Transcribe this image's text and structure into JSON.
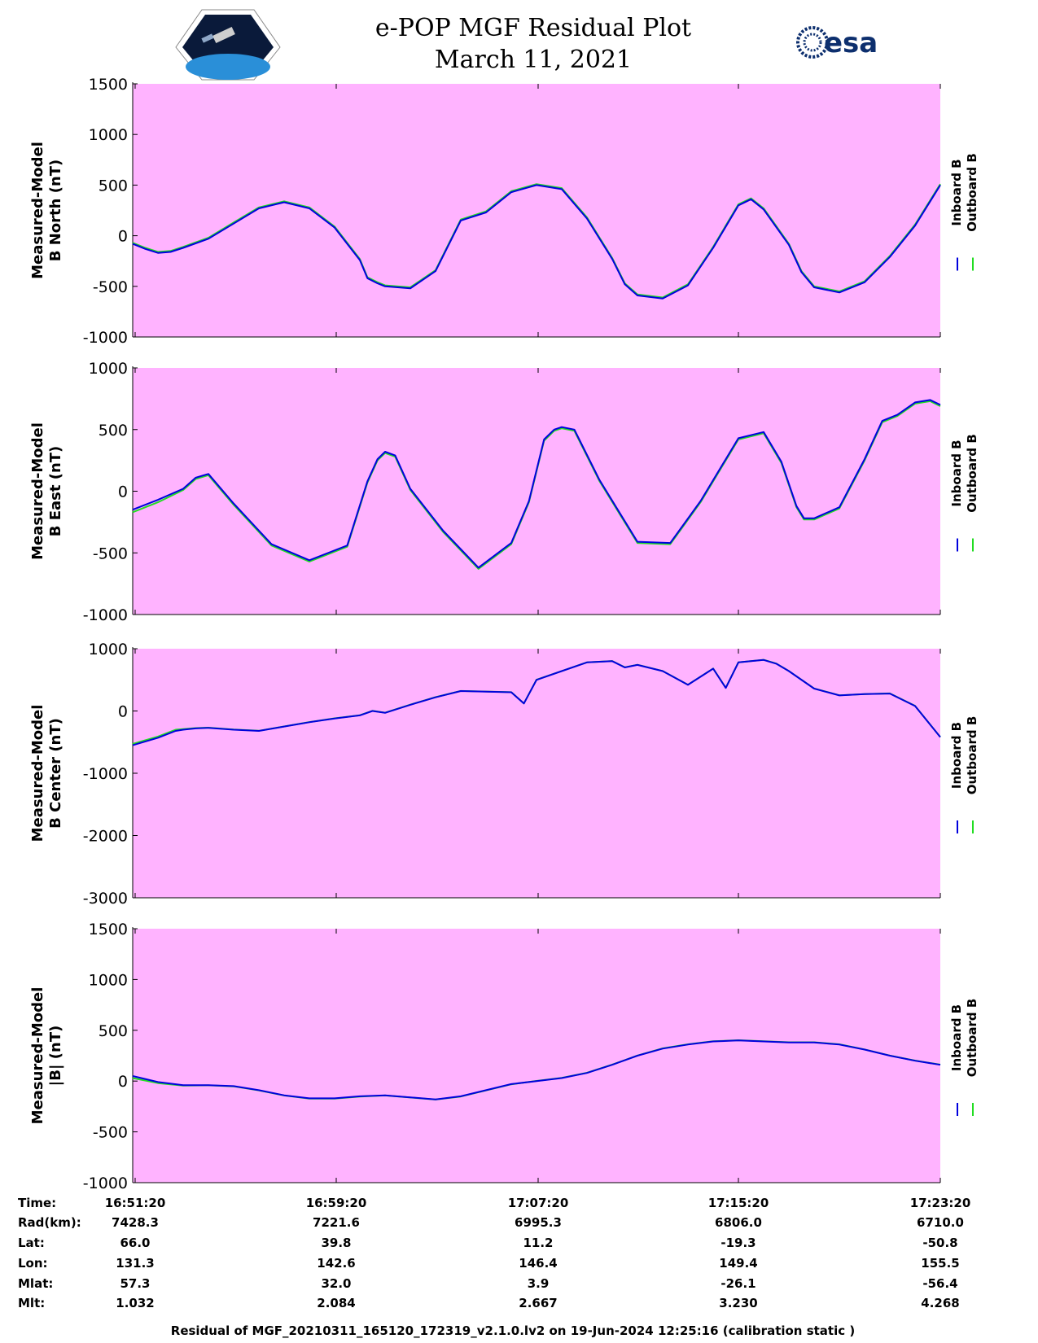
{
  "header": {
    "title_line1": "e-POP MGF Residual Plot",
    "title_line2": "March 11, 2021",
    "logo_left": "Cassiope e-POP mission logo",
    "logo_right_text": "esa"
  },
  "colors": {
    "plot_background": "#ffb3ff",
    "inboard": "#0000dd",
    "outboard": "#22dd22"
  },
  "legend": {
    "inboard": "Inboard B",
    "outboard": "Outboard B"
  },
  "chart_data": [
    {
      "type": "line",
      "ylabel": [
        "Measured-Model",
        "B North (nT)"
      ],
      "ylim": [
        -1000,
        1500
      ],
      "yticks": [
        1500,
        1000,
        500,
        0,
        -500,
        -1000
      ],
      "xlim_minutes": [
        0,
        32
      ],
      "series": [
        {
          "name": "Inboard B",
          "color": "#0000dd",
          "x_min": [
            0,
            0.5,
            1,
            1.5,
            2,
            3,
            4,
            5,
            6,
            7,
            8,
            9,
            9.3,
            9.7,
            10,
            11,
            12,
            13,
            14,
            15,
            16,
            17,
            18,
            19,
            19.5,
            20,
            21,
            22,
            23,
            24,
            24.5,
            25,
            26,
            26.5,
            27,
            28,
            29,
            30,
            31,
            32
          ],
          "y": [
            -80,
            -130,
            -170,
            -160,
            -120,
            -30,
            120,
            270,
            330,
            270,
            80,
            -240,
            -420,
            -470,
            -500,
            -520,
            -350,
            150,
            230,
            430,
            500,
            460,
            170,
            -230,
            -480,
            -590,
            -620,
            -490,
            -120,
            300,
            360,
            260,
            -90,
            -360,
            -510,
            -560,
            -460,
            -210,
            100,
            500
          ]
        },
        {
          "name": "Outboard B",
          "color": "#22dd22",
          "x_min": [
            0,
            0.5,
            1,
            1.5,
            2,
            3,
            4,
            5,
            6,
            7,
            8,
            9,
            9.3,
            9.7,
            10,
            11,
            12,
            13,
            14,
            15,
            16,
            17,
            18,
            19,
            19.5,
            20,
            21,
            22,
            23,
            24,
            24.5,
            25,
            26,
            26.5,
            27,
            28,
            29,
            30,
            31,
            32
          ],
          "y": [
            -70,
            -120,
            -160,
            -150,
            -110,
            -20,
            130,
            280,
            340,
            280,
            90,
            -230,
            -410,
            -460,
            -490,
            -510,
            -340,
            160,
            240,
            440,
            510,
            470,
            180,
            -220,
            -470,
            -580,
            -610,
            -480,
            -110,
            310,
            370,
            270,
            -80,
            -350,
            -500,
            -550,
            -450,
            -200,
            110,
            510
          ]
        }
      ]
    },
    {
      "type": "line",
      "ylabel": [
        "Measured-Model",
        "B East (nT)"
      ],
      "ylim": [
        -1000,
        1000
      ],
      "yticks": [
        1000,
        500,
        0,
        -500,
        -1000
      ],
      "xlim_minutes": [
        0,
        32
      ],
      "series": [
        {
          "name": "Inboard B",
          "color": "#0000dd",
          "x_min": [
            0,
            1,
            2,
            2.5,
            3,
            4,
            5.5,
            7,
            8.5,
            9.3,
            9.7,
            10,
            10.4,
            11,
            12.3,
            13.7,
            15,
            15.7,
            16.3,
            16.7,
            17,
            17.5,
            18.5,
            20,
            21.3,
            22.5,
            24,
            25,
            25.7,
            26.3,
            26.6,
            27,
            28,
            29,
            29.7,
            30.3,
            31,
            31.6,
            32
          ],
          "y": [
            -150,
            -70,
            20,
            110,
            140,
            -100,
            -430,
            -560,
            -440,
            80,
            260,
            320,
            290,
            20,
            -320,
            -620,
            -420,
            -80,
            420,
            500,
            520,
            500,
            90,
            -410,
            -420,
            -80,
            430,
            480,
            240,
            -120,
            -220,
            -220,
            -130,
            260,
            570,
            620,
            720,
            740,
            700
          ]
        },
        {
          "name": "Outboard B",
          "color": "#22dd22",
          "x_min": [
            0,
            1,
            2,
            2.5,
            3,
            4,
            5.5,
            7,
            8.5,
            9.3,
            9.7,
            10,
            10.4,
            11,
            12.3,
            13.7,
            15,
            15.7,
            16.3,
            16.7,
            17,
            17.5,
            18.5,
            20,
            21.3,
            22.5,
            24,
            25,
            25.7,
            26.3,
            26.6,
            27,
            28,
            29,
            29.7,
            30.3,
            31,
            31.6,
            32
          ],
          "y": [
            -170,
            -90,
            10,
            100,
            130,
            -110,
            -440,
            -570,
            -450,
            70,
            250,
            310,
            280,
            10,
            -330,
            -630,
            -430,
            -90,
            410,
            490,
            510,
            490,
            80,
            -420,
            -430,
            -90,
            420,
            470,
            230,
            -130,
            -230,
            -230,
            -140,
            250,
            560,
            610,
            710,
            730,
            690
          ]
        }
      ]
    },
    {
      "type": "line",
      "ylabel": [
        "Measured-Model",
        "B Center (nT)"
      ],
      "ylim": [
        -3000,
        1000
      ],
      "yticks": [
        1000,
        0,
        -1000,
        -2000,
        -3000
      ],
      "xlim_minutes": [
        0,
        32
      ],
      "series": [
        {
          "name": "Inboard B",
          "color": "#0000dd",
          "x_min": [
            0,
            1,
            1.7,
            2,
            2.5,
            3,
            4,
            5,
            6,
            7,
            8,
            9,
            9.5,
            10,
            11,
            12,
            13,
            14,
            15,
            15.5,
            16,
            17,
            18,
            19,
            19.5,
            20,
            21,
            22,
            23,
            23.5,
            24,
            25,
            25.5,
            26,
            27,
            28,
            29,
            30,
            31,
            32
          ],
          "y": [
            -550,
            -430,
            -320,
            -300,
            -280,
            -270,
            -300,
            -320,
            -250,
            -180,
            -120,
            -70,
            0,
            -30,
            100,
            220,
            320,
            310,
            300,
            120,
            500,
            640,
            780,
            800,
            700,
            740,
            640,
            420,
            680,
            370,
            780,
            820,
            760,
            640,
            360,
            250,
            270,
            280,
            80,
            -420
          ]
        },
        {
          "name": "Outboard B",
          "color": "#22dd22",
          "x_min": [
            0,
            1,
            1.7,
            2,
            2.5,
            3,
            4,
            5,
            6,
            7,
            8,
            9,
            9.5,
            10,
            11,
            12,
            13,
            14,
            15,
            15.5,
            16,
            17,
            18,
            19,
            19.5,
            20,
            21,
            22,
            23,
            23.5,
            24,
            25,
            25.5,
            26,
            27,
            28,
            29,
            30,
            31,
            32
          ],
          "y": [
            -530,
            -410,
            -300,
            -290,
            -275,
            -268,
            -298,
            -318,
            -248,
            -178,
            -118,
            -68,
            2,
            -28,
            102,
            222,
            322,
            312,
            302,
            122,
            502,
            642,
            782,
            802,
            702,
            742,
            642,
            422,
            682,
            372,
            782,
            822,
            762,
            642,
            362,
            252,
            272,
            282,
            82,
            -418
          ]
        }
      ]
    },
    {
      "type": "line",
      "ylabel": [
        "Measured-Model",
        "|B| (nT)"
      ],
      "ylim": [
        -1000,
        1500
      ],
      "yticks": [
        1500,
        1000,
        500,
        0,
        -500,
        -1000
      ],
      "xlim_minutes": [
        0,
        32
      ],
      "series": [
        {
          "name": "Inboard B",
          "color": "#0000dd",
          "x_min": [
            0,
            1,
            2,
            3,
            4,
            5,
            6,
            7,
            8,
            9,
            10,
            11,
            12,
            13,
            14,
            15,
            16,
            17,
            18,
            19,
            20,
            21,
            22,
            23,
            24,
            25,
            26,
            27,
            28,
            29,
            30,
            31,
            32
          ],
          "y": [
            50,
            -10,
            -40,
            -40,
            -50,
            -90,
            -140,
            -170,
            -170,
            -150,
            -140,
            -160,
            -180,
            -150,
            -90,
            -30,
            0,
            30,
            80,
            160,
            250,
            320,
            360,
            390,
            400,
            390,
            380,
            380,
            360,
            310,
            250,
            200,
            160
          ]
        },
        {
          "name": "Outboard B",
          "color": "#22dd22",
          "x_min": [
            0,
            1,
            2,
            3,
            4,
            5,
            6,
            7,
            8,
            9,
            10,
            11,
            12,
            13,
            14,
            15,
            16,
            17,
            18,
            19,
            20,
            21,
            22,
            23,
            24,
            25,
            26,
            27,
            28,
            29,
            30,
            31,
            32
          ],
          "y": [
            30,
            -20,
            -45,
            -42,
            -52,
            -92,
            -142,
            -172,
            -172,
            -152,
            -142,
            -162,
            -182,
            -152,
            -92,
            -32,
            2,
            32,
            82,
            162,
            252,
            322,
            362,
            392,
            402,
            392,
            382,
            382,
            362,
            312,
            252,
            202,
            162
          ]
        }
      ]
    }
  ],
  "table": {
    "labels": [
      "Time:",
      "Rad(km):",
      "Lat:",
      "Lon:",
      "Mlat:",
      "Mlt:"
    ],
    "columns": [
      [
        "16:51:20",
        "7428.3",
        "66.0",
        "131.3",
        "57.3",
        "1.032"
      ],
      [
        "16:59:20",
        "7221.6",
        "39.8",
        "142.6",
        "32.0",
        "2.084"
      ],
      [
        "17:07:20",
        "6995.3",
        "11.2",
        "146.4",
        "3.9",
        "2.667"
      ],
      [
        "17:15:20",
        "6806.0",
        "-19.3",
        "149.4",
        "-26.1",
        "3.230"
      ],
      [
        "17:23:20",
        "6710.0",
        "-50.8",
        "155.5",
        "-56.4",
        "4.268"
      ]
    ]
  },
  "footer": "Residual of MGF_20210311_165120_172319_v2.1.0.lv2 on 19-Jun-2024 12:25:16 (calibration static )"
}
